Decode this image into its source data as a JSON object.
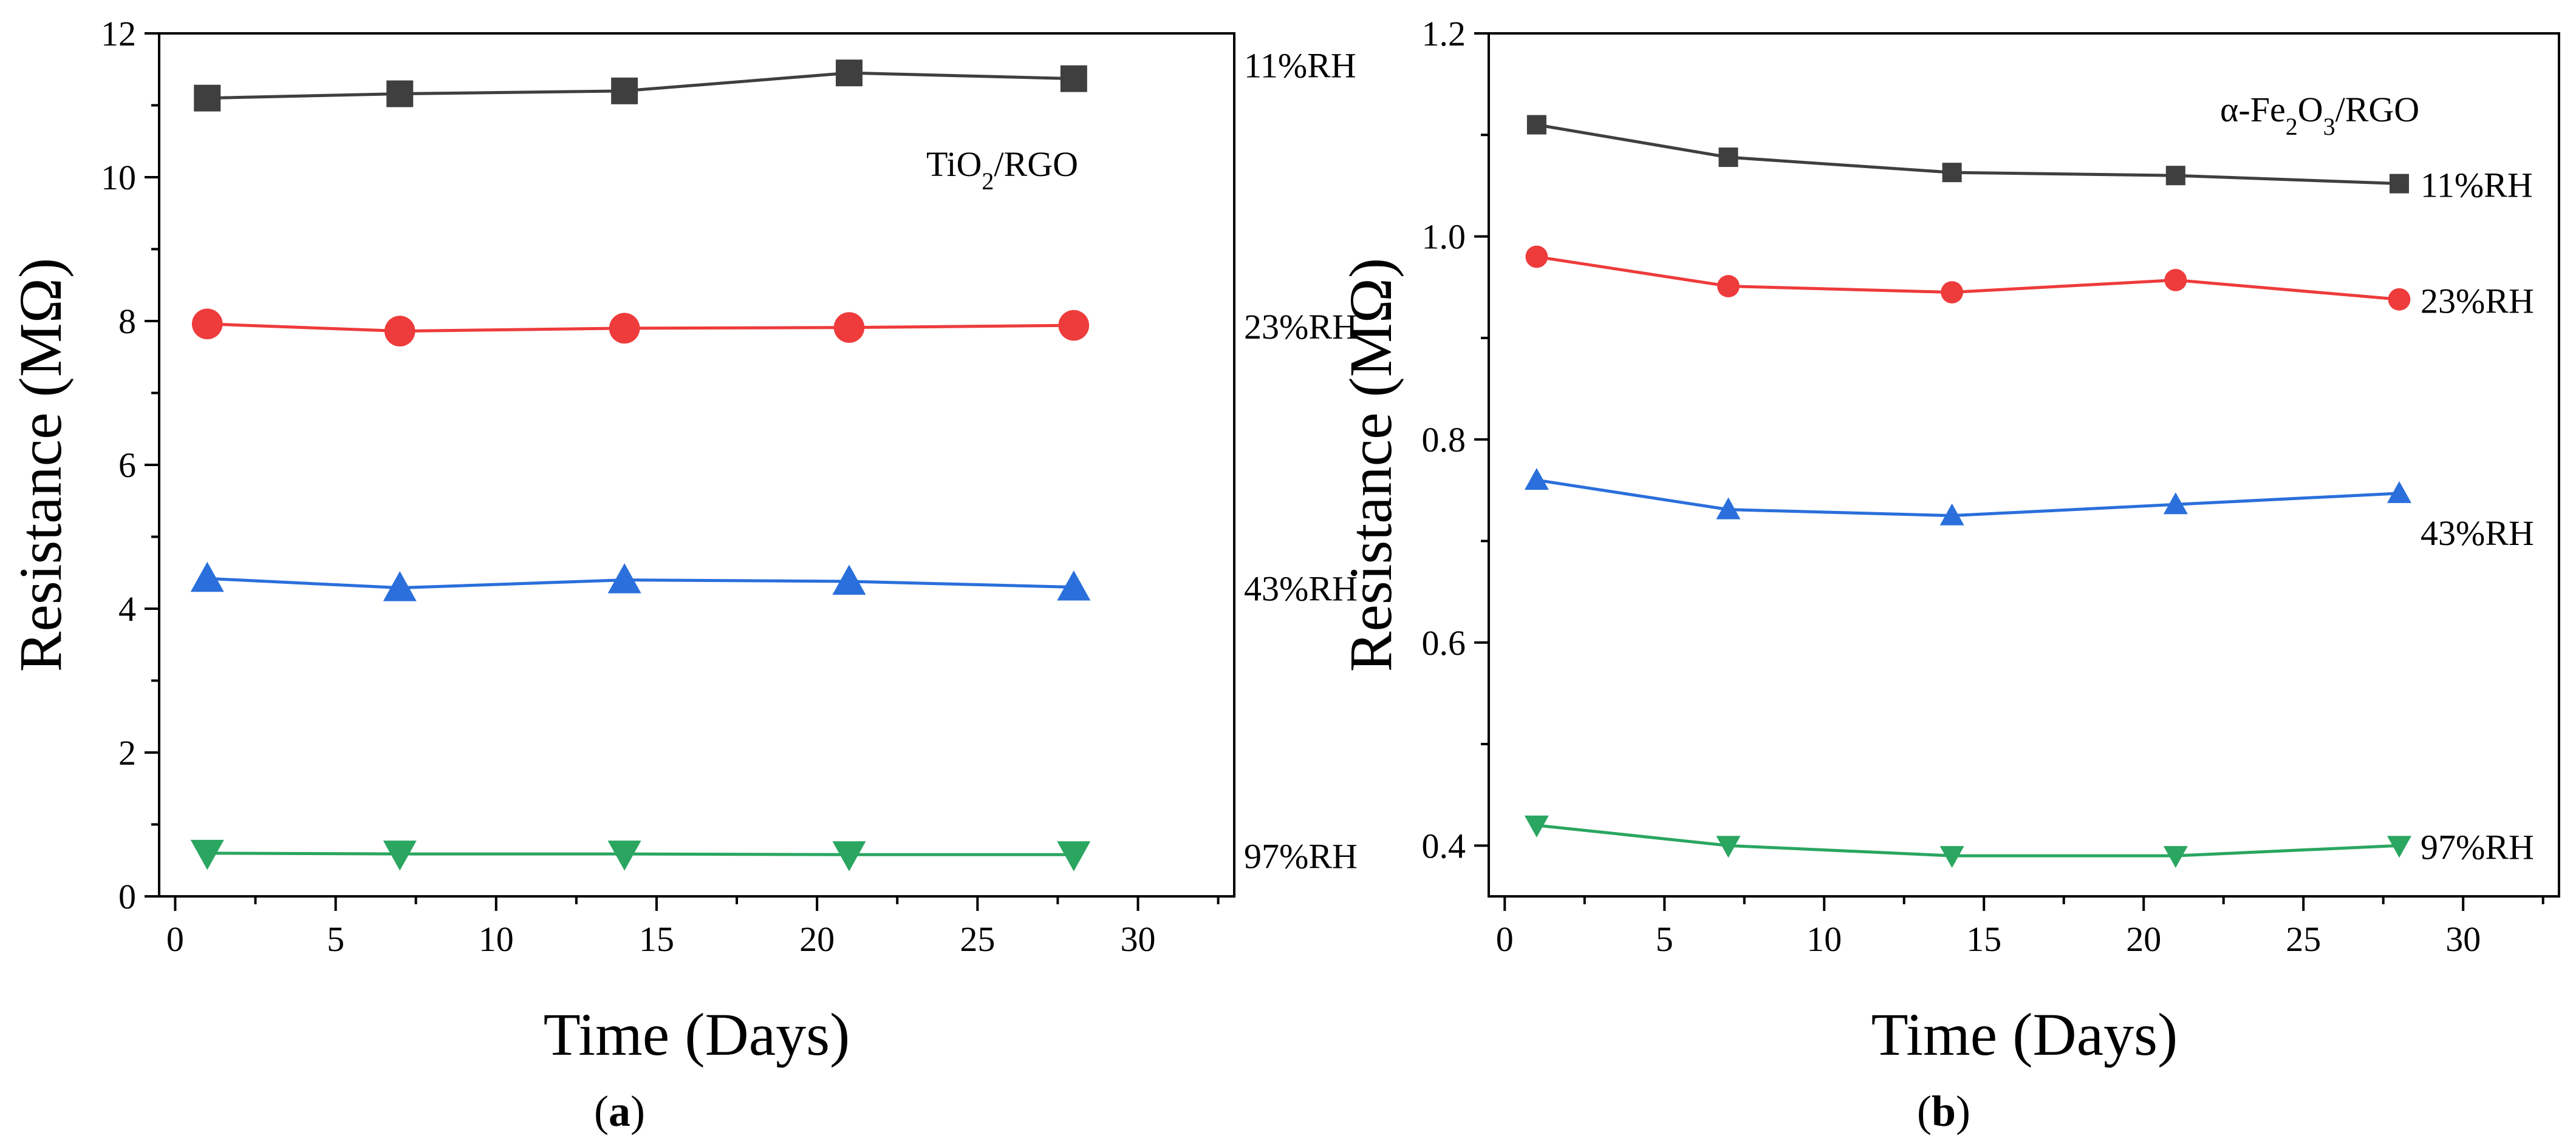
{
  "chart_data": [
    {
      "type": "line",
      "panel_label": "(a)",
      "panel_letter": "a",
      "title": "TiO2/RGO",
      "title_parts": [
        "TiO",
        "2",
        "/RGO"
      ],
      "xlabel": "Time (Days)",
      "ylabel": "Resistance (MΩ)",
      "xlim": [
        -0.5,
        33
      ],
      "ylim": [
        0,
        12
      ],
      "xticks": [
        0,
        5,
        10,
        15,
        20,
        25,
        30
      ],
      "yticks": [
        0,
        2,
        4,
        6,
        8,
        10,
        12
      ],
      "xtick_labels": [
        "0",
        "5",
        "10",
        "15",
        "20",
        "25",
        "30"
      ],
      "ytick_labels": [
        "0",
        "2",
        "4",
        "6",
        "8",
        "10",
        "12"
      ],
      "grid": false,
      "legend": "none",
      "x": [
        1,
        7,
        14,
        21,
        28
      ],
      "series": [
        {
          "name": "11%RH",
          "label": "11%RH",
          "color": "#3f3f3f",
          "marker": "square",
          "values": [
            11.1,
            11.16,
            11.2,
            11.45,
            11.37
          ]
        },
        {
          "name": "23%RH",
          "label": "23%RH",
          "color": "#ee3b3b",
          "marker": "circle",
          "values": [
            7.96,
            7.86,
            7.9,
            7.91,
            7.94
          ]
        },
        {
          "name": "43%RH",
          "label": "43%RH",
          "color": "#2a6fdb",
          "marker": "triangle-up",
          "values": [
            4.42,
            4.29,
            4.4,
            4.38,
            4.3
          ]
        },
        {
          "name": "97%RH",
          "label": "97%RH",
          "color": "#2aa660",
          "marker": "triangle-down",
          "values": [
            0.6,
            0.59,
            0.59,
            0.58,
            0.58
          ]
        }
      ]
    },
    {
      "type": "line",
      "panel_label": "(b)",
      "panel_letter": "b",
      "title": "α-Fe2O3/RGO",
      "title_parts": [
        "α-Fe",
        "2",
        "O",
        "3",
        "/RGO"
      ],
      "xlabel": "Time (Days)",
      "ylabel": "Resistance (MΩ)",
      "xlim": [
        -0.5,
        33
      ],
      "ylim": [
        0.35,
        1.2
      ],
      "xticks": [
        0,
        5,
        10,
        15,
        20,
        25,
        30
      ],
      "yticks": [
        0.4,
        0.6,
        0.8,
        1.0,
        1.2
      ],
      "xtick_labels": [
        "0",
        "5",
        "10",
        "15",
        "20",
        "25",
        "30"
      ],
      "ytick_labels": [
        "0.4",
        "0.6",
        "0.8",
        "1.0",
        "1.2"
      ],
      "grid": false,
      "legend": "none",
      "x": [
        1,
        7,
        14,
        21,
        28
      ],
      "series": [
        {
          "name": "11%RH",
          "label": "11%RH",
          "color": "#3f3f3f",
          "marker": "square",
          "values": [
            1.11,
            1.078,
            1.063,
            1.06,
            1.052
          ]
        },
        {
          "name": "23%RH",
          "label": "23%RH",
          "color": "#ee3b3b",
          "marker": "circle",
          "values": [
            0.98,
            0.951,
            0.945,
            0.957,
            0.938
          ]
        },
        {
          "name": "43%RH",
          "label": "43%RH",
          "color": "#2a6fdb",
          "marker": "triangle-up",
          "values": [
            0.76,
            0.731,
            0.725,
            0.736,
            0.747
          ]
        },
        {
          "name": "97%RH",
          "label": "97%RH",
          "color": "#2aa660",
          "marker": "triangle-down",
          "values": [
            0.42,
            0.4,
            0.39,
            0.39,
            0.4
          ]
        }
      ]
    }
  ]
}
